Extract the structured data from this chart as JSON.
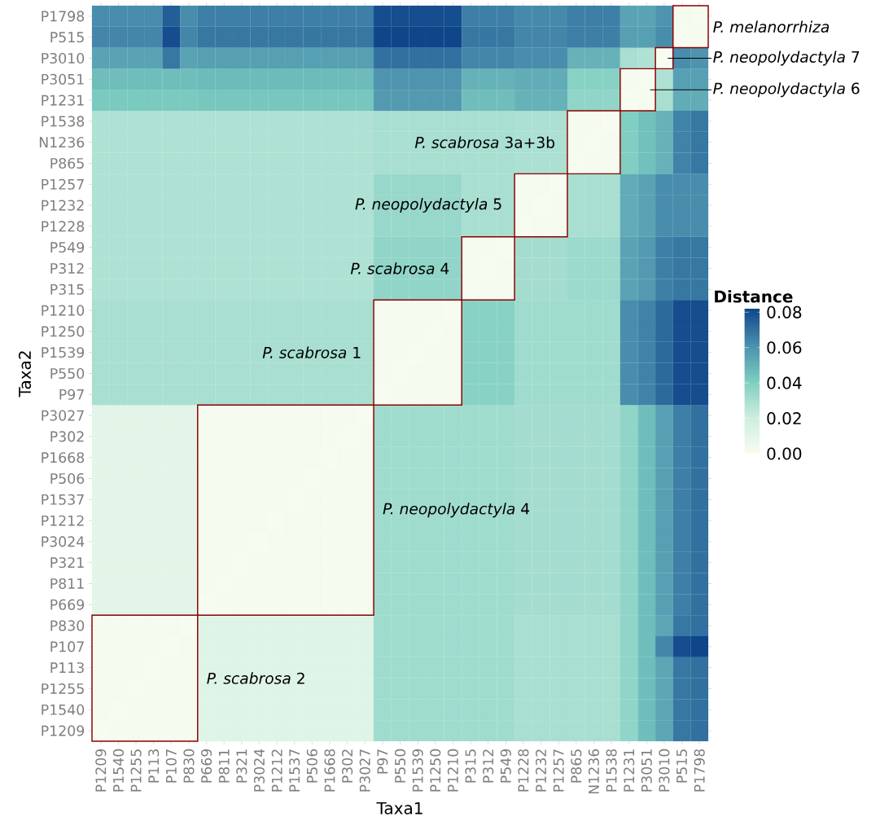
{
  "chart_data": {
    "type": "heatmap",
    "xlabel": "Taxa1",
    "ylabel": "Taxa2",
    "clabel": "Distance",
    "categories": [
      "P1209",
      "P1540",
      "P1255",
      "P113",
      "P107",
      "P830",
      "P669",
      "P811",
      "P321",
      "P3024",
      "P1212",
      "P1537",
      "P506",
      "P1668",
      "P302",
      "P3027",
      "P97",
      "P550",
      "P1539",
      "P1250",
      "P1210",
      "P315",
      "P312",
      "P549",
      "P1228",
      "P1232",
      "P1257",
      "P865",
      "N1236",
      "P1538",
      "P1231",
      "P3051",
      "P3010",
      "P515",
      "P1798"
    ],
    "y_categories": [
      "P1798",
      "P515",
      "P3010",
      "P3051",
      "P1231",
      "P1538",
      "N1236",
      "P865",
      "P1257",
      "P1232",
      "P1228",
      "P549",
      "P312",
      "P315",
      "P1210",
      "P1250",
      "P1539",
      "P550",
      "P97",
      "P3027",
      "P302",
      "P1668",
      "P506",
      "P1537",
      "P1212",
      "P3024",
      "P321",
      "P811",
      "P669",
      "P830",
      "P107",
      "P113",
      "P1255",
      "P1540",
      "P1209"
    ],
    "cells": [
      [
        0.062,
        0.062,
        0.062,
        0.062,
        0.075,
        0.062,
        0.066,
        0.066,
        0.066,
        0.066,
        0.066,
        0.066,
        0.066,
        0.066,
        0.066,
        0.066,
        0.08,
        0.08,
        0.08,
        0.08,
        0.08,
        0.066,
        0.066,
        0.066,
        0.063,
        0.063,
        0.063,
        0.066,
        0.066,
        0.066,
        0.055,
        0.055,
        0.06,
        0.001,
        0
      ],
      [
        0.064,
        0.064,
        0.064,
        0.064,
        0.08,
        0.064,
        0.068,
        0.068,
        0.068,
        0.068,
        0.068,
        0.068,
        0.068,
        0.068,
        0.068,
        0.068,
        0.082,
        0.082,
        0.082,
        0.082,
        0.082,
        0.068,
        0.068,
        0.068,
        0.064,
        0.064,
        0.064,
        0.066,
        0.066,
        0.066,
        0.056,
        0.056,
        0.062,
        0,
        0.001
      ],
      [
        0.055,
        0.055,
        0.055,
        0.055,
        0.068,
        0.055,
        0.056,
        0.056,
        0.056,
        0.056,
        0.056,
        0.056,
        0.056,
        0.056,
        0.056,
        0.056,
        0.07,
        0.07,
        0.07,
        0.07,
        0.07,
        0.064,
        0.064,
        0.064,
        0.062,
        0.062,
        0.062,
        0.05,
        0.05,
        0.05,
        0.03,
        0.028,
        0,
        0.062,
        0.06
      ],
      [
        0.046,
        0.046,
        0.046,
        0.046,
        0.046,
        0.046,
        0.047,
        0.047,
        0.047,
        0.047,
        0.047,
        0.047,
        0.047,
        0.047,
        0.047,
        0.047,
        0.06,
        0.06,
        0.06,
        0.06,
        0.06,
        0.05,
        0.05,
        0.05,
        0.052,
        0.052,
        0.052,
        0.038,
        0.038,
        0.038,
        0.001,
        0,
        0.028,
        0.056,
        0.056
      ],
      [
        0.042,
        0.042,
        0.042,
        0.042,
        0.042,
        0.042,
        0.043,
        0.043,
        0.043,
        0.043,
        0.043,
        0.043,
        0.043,
        0.043,
        0.043,
        0.043,
        0.058,
        0.058,
        0.058,
        0.058,
        0.058,
        0.046,
        0.046,
        0.046,
        0.05,
        0.05,
        0.05,
        0.036,
        0.036,
        0.036,
        0,
        0.001,
        0.03,
        0.052,
        0.052
      ],
      [
        0.028,
        0.028,
        0.028,
        0.028,
        0.028,
        0.028,
        0.028,
        0.028,
        0.028,
        0.028,
        0.028,
        0.028,
        0.028,
        0.028,
        0.028,
        0.028,
        0.03,
        0.03,
        0.03,
        0.03,
        0.03,
        0.03,
        0.03,
        0.03,
        0.029,
        0.029,
        0.029,
        0.001,
        0.001,
        0,
        0.04,
        0.045,
        0.05,
        0.065,
        0.068
      ],
      [
        0.028,
        0.028,
        0.028,
        0.028,
        0.028,
        0.028,
        0.028,
        0.028,
        0.028,
        0.028,
        0.028,
        0.028,
        0.028,
        0.028,
        0.028,
        0.028,
        0.03,
        0.03,
        0.03,
        0.03,
        0.03,
        0.03,
        0.03,
        0.03,
        0.029,
        0.029,
        0.029,
        0.001,
        0,
        0.001,
        0.04,
        0.045,
        0.05,
        0.065,
        0.068
      ],
      [
        0.028,
        0.028,
        0.028,
        0.028,
        0.028,
        0.028,
        0.028,
        0.028,
        0.028,
        0.028,
        0.028,
        0.028,
        0.028,
        0.028,
        0.028,
        0.028,
        0.03,
        0.03,
        0.03,
        0.03,
        0.03,
        0.03,
        0.03,
        0.03,
        0.029,
        0.029,
        0.029,
        0,
        0.001,
        0.001,
        0.04,
        0.045,
        0.05,
        0.065,
        0.068
      ],
      [
        0.028,
        0.028,
        0.028,
        0.028,
        0.028,
        0.028,
        0.028,
        0.028,
        0.028,
        0.028,
        0.028,
        0.028,
        0.028,
        0.028,
        0.028,
        0.028,
        0.034,
        0.034,
        0.034,
        0.034,
        0.034,
        0.03,
        0.03,
        0.03,
        0.001,
        0.001,
        0,
        0.03,
        0.03,
        0.03,
        0.052,
        0.055,
        0.062,
        0.062,
        0.062
      ],
      [
        0.028,
        0.028,
        0.028,
        0.028,
        0.028,
        0.028,
        0.028,
        0.028,
        0.028,
        0.028,
        0.028,
        0.028,
        0.028,
        0.028,
        0.028,
        0.028,
        0.034,
        0.034,
        0.034,
        0.034,
        0.034,
        0.03,
        0.03,
        0.03,
        0.001,
        0,
        0.001,
        0.03,
        0.03,
        0.03,
        0.052,
        0.055,
        0.062,
        0.062,
        0.062
      ],
      [
        0.028,
        0.028,
        0.028,
        0.028,
        0.028,
        0.028,
        0.028,
        0.028,
        0.028,
        0.028,
        0.028,
        0.028,
        0.028,
        0.028,
        0.028,
        0.028,
        0.034,
        0.034,
        0.034,
        0.034,
        0.034,
        0.03,
        0.03,
        0.03,
        0,
        0.001,
        0.001,
        0.03,
        0.03,
        0.03,
        0.052,
        0.055,
        0.062,
        0.062,
        0.062
      ],
      [
        0.028,
        0.028,
        0.028,
        0.028,
        0.028,
        0.028,
        0.028,
        0.028,
        0.028,
        0.028,
        0.028,
        0.028,
        0.028,
        0.028,
        0.028,
        0.028,
        0.036,
        0.036,
        0.036,
        0.036,
        0.036,
        0.001,
        0.001,
        0,
        0.031,
        0.031,
        0.031,
        0.033,
        0.033,
        0.033,
        0.055,
        0.058,
        0.066,
        0.068,
        0.068
      ],
      [
        0.028,
        0.028,
        0.028,
        0.028,
        0.028,
        0.028,
        0.028,
        0.028,
        0.028,
        0.028,
        0.028,
        0.028,
        0.028,
        0.028,
        0.028,
        0.028,
        0.036,
        0.036,
        0.036,
        0.036,
        0.036,
        0.001,
        0,
        0.001,
        0.031,
        0.031,
        0.031,
        0.033,
        0.033,
        0.033,
        0.055,
        0.058,
        0.066,
        0.068,
        0.068
      ],
      [
        0.028,
        0.028,
        0.028,
        0.028,
        0.028,
        0.028,
        0.028,
        0.028,
        0.028,
        0.028,
        0.028,
        0.028,
        0.028,
        0.028,
        0.028,
        0.028,
        0.036,
        0.036,
        0.036,
        0.036,
        0.036,
        0,
        0.001,
        0.001,
        0.031,
        0.031,
        0.031,
        0.033,
        0.033,
        0.033,
        0.055,
        0.058,
        0.066,
        0.068,
        0.068
      ],
      [
        0.03,
        0.03,
        0.03,
        0.03,
        0.03,
        0.03,
        0.03,
        0.03,
        0.03,
        0.03,
        0.03,
        0.03,
        0.03,
        0.03,
        0.03,
        0.03,
        0.001,
        0.001,
        0.001,
        0.001,
        0,
        0.038,
        0.038,
        0.038,
        0.032,
        0.032,
        0.032,
        0.032,
        0.032,
        0.032,
        0.062,
        0.065,
        0.072,
        0.08,
        0.08
      ],
      [
        0.03,
        0.03,
        0.03,
        0.03,
        0.03,
        0.03,
        0.03,
        0.03,
        0.03,
        0.03,
        0.03,
        0.03,
        0.03,
        0.03,
        0.03,
        0.03,
        0.001,
        0.001,
        0.001,
        0,
        0.001,
        0.038,
        0.038,
        0.038,
        0.032,
        0.032,
        0.032,
        0.032,
        0.032,
        0.032,
        0.062,
        0.065,
        0.072,
        0.08,
        0.08
      ],
      [
        0.03,
        0.03,
        0.03,
        0.03,
        0.03,
        0.03,
        0.03,
        0.03,
        0.03,
        0.03,
        0.03,
        0.03,
        0.03,
        0.03,
        0.03,
        0.03,
        0.001,
        0.001,
        0,
        0.001,
        0.001,
        0.038,
        0.038,
        0.038,
        0.032,
        0.032,
        0.032,
        0.032,
        0.032,
        0.032,
        0.062,
        0.065,
        0.072,
        0.08,
        0.08
      ],
      [
        0.03,
        0.03,
        0.03,
        0.03,
        0.03,
        0.03,
        0.03,
        0.03,
        0.03,
        0.03,
        0.03,
        0.03,
        0.03,
        0.03,
        0.03,
        0.03,
        0.001,
        0,
        0.001,
        0.001,
        0.001,
        0.038,
        0.038,
        0.038,
        0.032,
        0.032,
        0.032,
        0.032,
        0.032,
        0.032,
        0.062,
        0.065,
        0.072,
        0.08,
        0.08
      ],
      [
        0.03,
        0.03,
        0.03,
        0.03,
        0.03,
        0.03,
        0.03,
        0.03,
        0.03,
        0.03,
        0.03,
        0.03,
        0.03,
        0.03,
        0.03,
        0.03,
        0,
        0.001,
        0.001,
        0.001,
        0.001,
        0.038,
        0.038,
        0.038,
        0.032,
        0.032,
        0.032,
        0.032,
        0.032,
        0.032,
        0.062,
        0.065,
        0.072,
        0.08,
        0.08
      ],
      [
        0.01,
        0.01,
        0.01,
        0.01,
        0.01,
        0.01,
        0.001,
        0.001,
        0.001,
        0.001,
        0.001,
        0.001,
        0.001,
        0.001,
        0.001,
        0,
        0.032,
        0.032,
        0.032,
        0.032,
        0.032,
        0.032,
        0.032,
        0.032,
        0.031,
        0.031,
        0.031,
        0.031,
        0.031,
        0.031,
        0.036,
        0.046,
        0.056,
        0.066,
        0.07
      ],
      [
        0.01,
        0.01,
        0.01,
        0.01,
        0.01,
        0.01,
        0.001,
        0.001,
        0.001,
        0.001,
        0.001,
        0.001,
        0.001,
        0.001,
        0,
        0.001,
        0.032,
        0.032,
        0.032,
        0.032,
        0.032,
        0.032,
        0.032,
        0.032,
        0.031,
        0.031,
        0.031,
        0.031,
        0.031,
        0.031,
        0.036,
        0.046,
        0.056,
        0.066,
        0.07
      ],
      [
        0.01,
        0.01,
        0.01,
        0.01,
        0.01,
        0.01,
        0.001,
        0.001,
        0.001,
        0.001,
        0.001,
        0.001,
        0.001,
        0,
        0.001,
        0.001,
        0.032,
        0.032,
        0.032,
        0.032,
        0.032,
        0.032,
        0.032,
        0.032,
        0.031,
        0.031,
        0.031,
        0.031,
        0.031,
        0.031,
        0.036,
        0.046,
        0.056,
        0.066,
        0.07
      ],
      [
        0.01,
        0.01,
        0.01,
        0.01,
        0.01,
        0.01,
        0.001,
        0.001,
        0.001,
        0.001,
        0.001,
        0.001,
        0,
        0.001,
        0.001,
        0.001,
        0.032,
        0.032,
        0.032,
        0.032,
        0.032,
        0.032,
        0.032,
        0.032,
        0.031,
        0.031,
        0.031,
        0.031,
        0.031,
        0.031,
        0.036,
        0.046,
        0.056,
        0.066,
        0.07
      ],
      [
        0.01,
        0.01,
        0.01,
        0.01,
        0.01,
        0.01,
        0.001,
        0.001,
        0.001,
        0.001,
        0.001,
        0,
        0.001,
        0.001,
        0.001,
        0.001,
        0.032,
        0.032,
        0.032,
        0.032,
        0.032,
        0.032,
        0.032,
        0.032,
        0.031,
        0.031,
        0.031,
        0.031,
        0.031,
        0.031,
        0.036,
        0.046,
        0.056,
        0.066,
        0.07
      ],
      [
        0.01,
        0.01,
        0.01,
        0.01,
        0.01,
        0.01,
        0.001,
        0.001,
        0.001,
        0.001,
        0,
        0.001,
        0.001,
        0.001,
        0.001,
        0.001,
        0.032,
        0.032,
        0.032,
        0.032,
        0.032,
        0.032,
        0.032,
        0.032,
        0.031,
        0.031,
        0.031,
        0.031,
        0.031,
        0.031,
        0.036,
        0.046,
        0.056,
        0.066,
        0.07
      ],
      [
        0.01,
        0.01,
        0.01,
        0.01,
        0.01,
        0.01,
        0.001,
        0.001,
        0.001,
        0,
        0.001,
        0.001,
        0.001,
        0.001,
        0.001,
        0.001,
        0.032,
        0.032,
        0.032,
        0.032,
        0.032,
        0.032,
        0.032,
        0.032,
        0.031,
        0.031,
        0.031,
        0.031,
        0.031,
        0.031,
        0.036,
        0.046,
        0.056,
        0.066,
        0.07
      ],
      [
        0.01,
        0.01,
        0.01,
        0.01,
        0.01,
        0.01,
        0.001,
        0.001,
        0,
        0.001,
        0.001,
        0.001,
        0.001,
        0.001,
        0.001,
        0.001,
        0.032,
        0.032,
        0.032,
        0.032,
        0.032,
        0.032,
        0.032,
        0.032,
        0.031,
        0.031,
        0.031,
        0.031,
        0.031,
        0.031,
        0.036,
        0.046,
        0.056,
        0.066,
        0.07
      ],
      [
        0.01,
        0.01,
        0.01,
        0.01,
        0.01,
        0.01,
        0.001,
        0,
        0.001,
        0.001,
        0.001,
        0.001,
        0.001,
        0.001,
        0.001,
        0.001,
        0.032,
        0.032,
        0.032,
        0.032,
        0.032,
        0.032,
        0.032,
        0.032,
        0.031,
        0.031,
        0.031,
        0.031,
        0.031,
        0.031,
        0.036,
        0.046,
        0.056,
        0.066,
        0.07
      ],
      [
        0.01,
        0.01,
        0.01,
        0.01,
        0.01,
        0.01,
        0,
        0.001,
        0.001,
        0.001,
        0.001,
        0.001,
        0.001,
        0.001,
        0.001,
        0.001,
        0.032,
        0.032,
        0.032,
        0.032,
        0.032,
        0.032,
        0.032,
        0.032,
        0.031,
        0.031,
        0.031,
        0.031,
        0.031,
        0.031,
        0.036,
        0.046,
        0.056,
        0.066,
        0.07
      ],
      [
        0.001,
        0.001,
        0.001,
        0.001,
        0.001,
        0,
        0.012,
        0.012,
        0.012,
        0.012,
        0.012,
        0.012,
        0.012,
        0.012,
        0.012,
        0.012,
        0.032,
        0.032,
        0.032,
        0.032,
        0.032,
        0.032,
        0.032,
        0.032,
        0.03,
        0.03,
        0.03,
        0.03,
        0.03,
        0.03,
        0.036,
        0.046,
        0.054,
        0.068,
        0.07
      ],
      [
        0.001,
        0.001,
        0.001,
        0.001,
        0,
        0.001,
        0.012,
        0.012,
        0.012,
        0.012,
        0.012,
        0.012,
        0.012,
        0.012,
        0.012,
        0.012,
        0.032,
        0.032,
        0.032,
        0.032,
        0.032,
        0.032,
        0.032,
        0.032,
        0.03,
        0.03,
        0.03,
        0.03,
        0.03,
        0.03,
        0.036,
        0.046,
        0.064,
        0.08,
        0.082
      ],
      [
        0.001,
        0.001,
        0.001,
        0,
        0.001,
        0.001,
        0.012,
        0.012,
        0.012,
        0.012,
        0.012,
        0.012,
        0.012,
        0.012,
        0.012,
        0.012,
        0.032,
        0.032,
        0.032,
        0.032,
        0.032,
        0.032,
        0.032,
        0.032,
        0.03,
        0.03,
        0.03,
        0.03,
        0.03,
        0.03,
        0.036,
        0.046,
        0.054,
        0.068,
        0.07
      ],
      [
        0.001,
        0.001,
        0,
        0.001,
        0.001,
        0.001,
        0.012,
        0.012,
        0.012,
        0.012,
        0.012,
        0.012,
        0.012,
        0.012,
        0.012,
        0.012,
        0.032,
        0.032,
        0.032,
        0.032,
        0.032,
        0.032,
        0.032,
        0.032,
        0.03,
        0.03,
        0.03,
        0.03,
        0.03,
        0.03,
        0.036,
        0.046,
        0.054,
        0.068,
        0.07
      ],
      [
        0.001,
        0,
        0.001,
        0.001,
        0.001,
        0.001,
        0.012,
        0.012,
        0.012,
        0.012,
        0.012,
        0.012,
        0.012,
        0.012,
        0.012,
        0.012,
        0.032,
        0.032,
        0.032,
        0.032,
        0.032,
        0.032,
        0.032,
        0.032,
        0.03,
        0.03,
        0.03,
        0.03,
        0.03,
        0.03,
        0.036,
        0.046,
        0.054,
        0.068,
        0.07
      ],
      [
        0,
        0.001,
        0.001,
        0.001,
        0.001,
        0.001,
        0.012,
        0.012,
        0.012,
        0.012,
        0.012,
        0.012,
        0.012,
        0.012,
        0.012,
        0.012,
        0.032,
        0.032,
        0.032,
        0.032,
        0.032,
        0.032,
        0.032,
        0.032,
        0.03,
        0.03,
        0.03,
        0.03,
        0.03,
        0.03,
        0.036,
        0.046,
        0.054,
        0.068,
        0.07
      ]
    ],
    "clim": [
      0,
      0.082
    ],
    "cticks": [
      {
        "value": 0,
        "label": "0.00"
      },
      {
        "value": 0.02,
        "label": "0.02"
      },
      {
        "value": 0.04,
        "label": "0.04"
      },
      {
        "value": 0.06,
        "label": "0.06"
      },
      {
        "value": 0.08,
        "label": "0.08"
      }
    ],
    "annotations": [
      "*P. melanorrhiza*",
      "*P. neopolydactyla* 7",
      "*P. neopolydactyla* 6",
      "*P. scabrosa* 3a+3b",
      "*P. neopolydactyla* 5",
      "*P. scabrosa* 4",
      "*P. scabrosa* 1",
      "*P. neopolydactyla* 4",
      "*P. scabrosa* 2"
    ]
  }
}
